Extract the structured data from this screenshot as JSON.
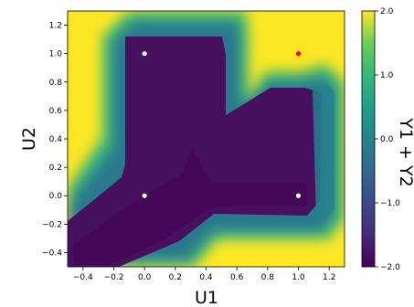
{
  "chart_data": {
    "type": "heatmap",
    "title": "",
    "xlabel": "U1",
    "ylabel": "U2",
    "colorbar_label": "Y1 + Y2",
    "xlim": [
      -0.5,
      1.3
    ],
    "ylim": [
      -0.5,
      1.3
    ],
    "x_ticks": [
      -0.4,
      -0.2,
      0.0,
      0.2,
      0.4,
      0.6,
      0.8,
      1.0,
      1.2
    ],
    "x_tick_labels": [
      "−0.4",
      "−0.2",
      "0.0",
      "0.2",
      "0.4",
      "0.6",
      "0.8",
      "1.0",
      "1.2"
    ],
    "y_ticks": [
      -0.4,
      -0.2,
      0.0,
      0.2,
      0.4,
      0.6,
      0.8,
      1.0,
      1.2
    ],
    "y_tick_labels": [
      "−0.4",
      "−0.2",
      "0.0",
      "0.2",
      "0.4",
      "0.6",
      "0.8",
      "1.0",
      "1.2"
    ],
    "colorbar": {
      "min": -2.0,
      "max": 2.0,
      "colormap": "viridis",
      "ticks": [
        2.0,
        1.0,
        0.0,
        -1.0,
        -2.0
      ],
      "tick_labels": [
        "2.0",
        "1.0",
        "0.0",
        "−1.0",
        "−2.0"
      ]
    },
    "points": [
      {
        "x": 0.0,
        "y": 1.0,
        "color": "#ffffff"
      },
      {
        "x": 0.0,
        "y": 0.0,
        "color": "#ffffff"
      },
      {
        "x": 1.0,
        "y": 0.0,
        "color": "#ffffff"
      },
      {
        "x": 1.0,
        "y": 1.0,
        "color": "#ff0000"
      }
    ],
    "colors": {
      "low": "#440154",
      "mid": "#21918c",
      "high": "#fde725"
    },
    "grid": false
  }
}
